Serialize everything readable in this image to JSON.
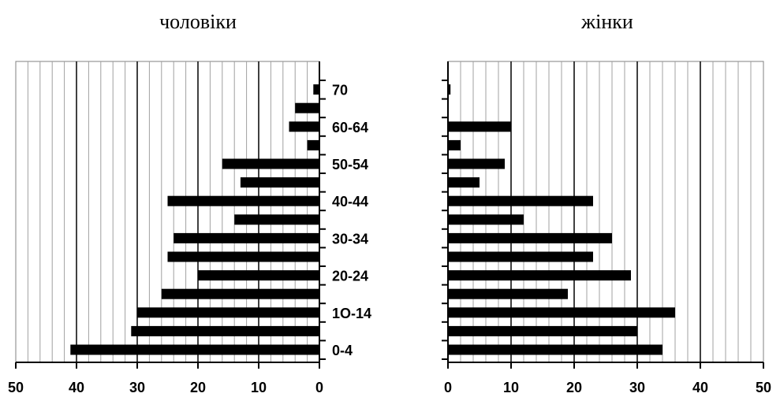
{
  "chart_data": [
    {
      "type": "bar",
      "orientation": "horizontal",
      "title": "чоловіки",
      "xlim": [
        0,
        50
      ],
      "x_reversed": true,
      "xticks": [
        "50",
        "40",
        "30",
        "20",
        "10",
        "0"
      ],
      "category_labels": [
        "0-4",
        "1O-14",
        "20-24",
        "30-34",
        "40-44",
        "50-54",
        "60-64",
        "70"
      ],
      "values": [
        41,
        31,
        30,
        26,
        20,
        25,
        24,
        14,
        25,
        13,
        16,
        2,
        5,
        4,
        1
      ],
      "grid": "vertical",
      "colors": {
        "bar": "#000000",
        "minor_grid": "#a0a0a0",
        "major_grid": "#000000",
        "border": "#808080"
      }
    },
    {
      "type": "bar",
      "orientation": "horizontal",
      "title": "жінки",
      "xlim": [
        0,
        50
      ],
      "xticks": [
        "0",
        "10",
        "20",
        "30",
        "40",
        "50"
      ],
      "values": [
        34,
        30,
        36,
        19,
        29,
        23,
        26,
        12,
        23,
        5,
        9,
        2,
        10,
        0,
        0.4
      ],
      "grid": "vertical",
      "colors": {
        "bar": "#000000",
        "minor_grid": "#a0a0a0",
        "major_grid": "#000000",
        "border": "#808080"
      }
    }
  ]
}
